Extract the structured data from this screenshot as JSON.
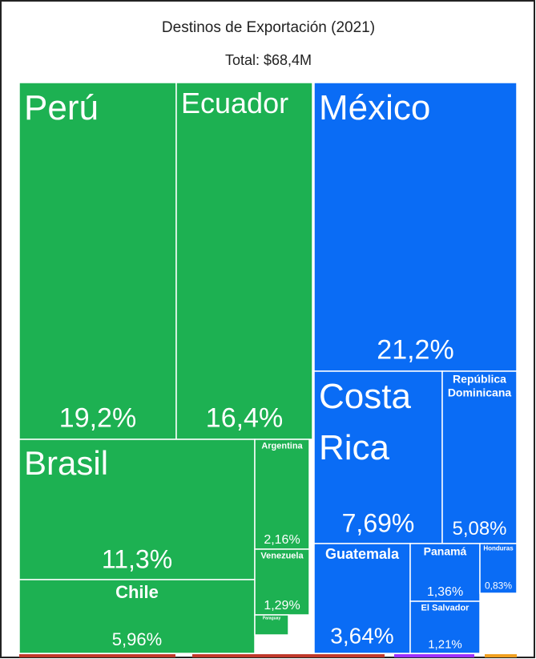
{
  "chart_data": {
    "type": "treemap",
    "title": "Destinos de Exportación (2021)",
    "subtitle": "Total: $68,4M",
    "categories": [
      "Perú",
      "Ecuador",
      "México",
      "Brasil",
      "Chile",
      "Argentina",
      "Venezuela",
      "Paraguay",
      "Costa Rica",
      "República Dominicana",
      "Guatemala",
      "Panamá",
      "El Salvador",
      "Honduras"
    ],
    "values": [
      19.2,
      16.4,
      21.2,
      11.3,
      5.96,
      2.16,
      1.29,
      0.4,
      7.69,
      5.08,
      3.64,
      1.36,
      1.21,
      0.83
    ],
    "value_labels": [
      "19,2%",
      "16,4%",
      "21,2%",
      "11,3%",
      "5,96%",
      "2,16%",
      "1,29%",
      null,
      "7,69%",
      "5,08%",
      "3,64%",
      "1,36%",
      "1,21%",
      "0,83%"
    ],
    "colors": [
      "#1db152",
      "#1db152",
      "#0a6cf5",
      "#1db152",
      "#1db152",
      "#1db152",
      "#1db152",
      "#1db152",
      "#0a6cf5",
      "#0a6cf5",
      "#0a6cf5",
      "#0a6cf5",
      "#0a6cf5",
      "#0a6cf5"
    ]
  }
}
